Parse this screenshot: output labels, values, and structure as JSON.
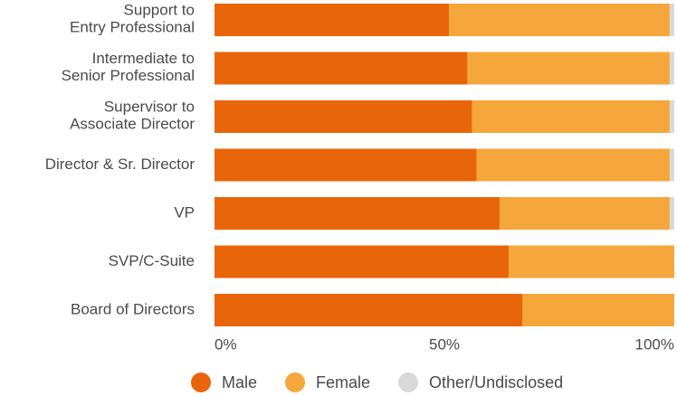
{
  "chart_data": {
    "type": "stacked_bar_horizontal",
    "categories": [
      "Support to\nEntry Professional",
      "Intermediate to\nSenior Professional",
      "Supervisor to\nAssociate Director",
      "Director & Sr. Director",
      "VP",
      "SVP/C-Suite",
      "Board of Directors"
    ],
    "series": [
      {
        "name": "Male",
        "color": "#e8650a",
        "values": [
          51,
          55,
          56,
          57,
          62,
          64,
          67
        ]
      },
      {
        "name": "Female",
        "color": "#f5a73b",
        "values": [
          48,
          44,
          43,
          42,
          37,
          36,
          33
        ]
      },
      {
        "name": "Other/Undisclosed",
        "color": "#d9d9d9",
        "values": [
          1,
          1,
          1,
          1,
          1,
          0,
          0
        ]
      }
    ],
    "xlim": [
      0,
      100
    ],
    "xticks": [
      {
        "value": 0,
        "label": "0%"
      },
      {
        "value": 50,
        "label": "50%"
      },
      {
        "value": 100,
        "label": "100%"
      }
    ],
    "legend": "bottom"
  }
}
